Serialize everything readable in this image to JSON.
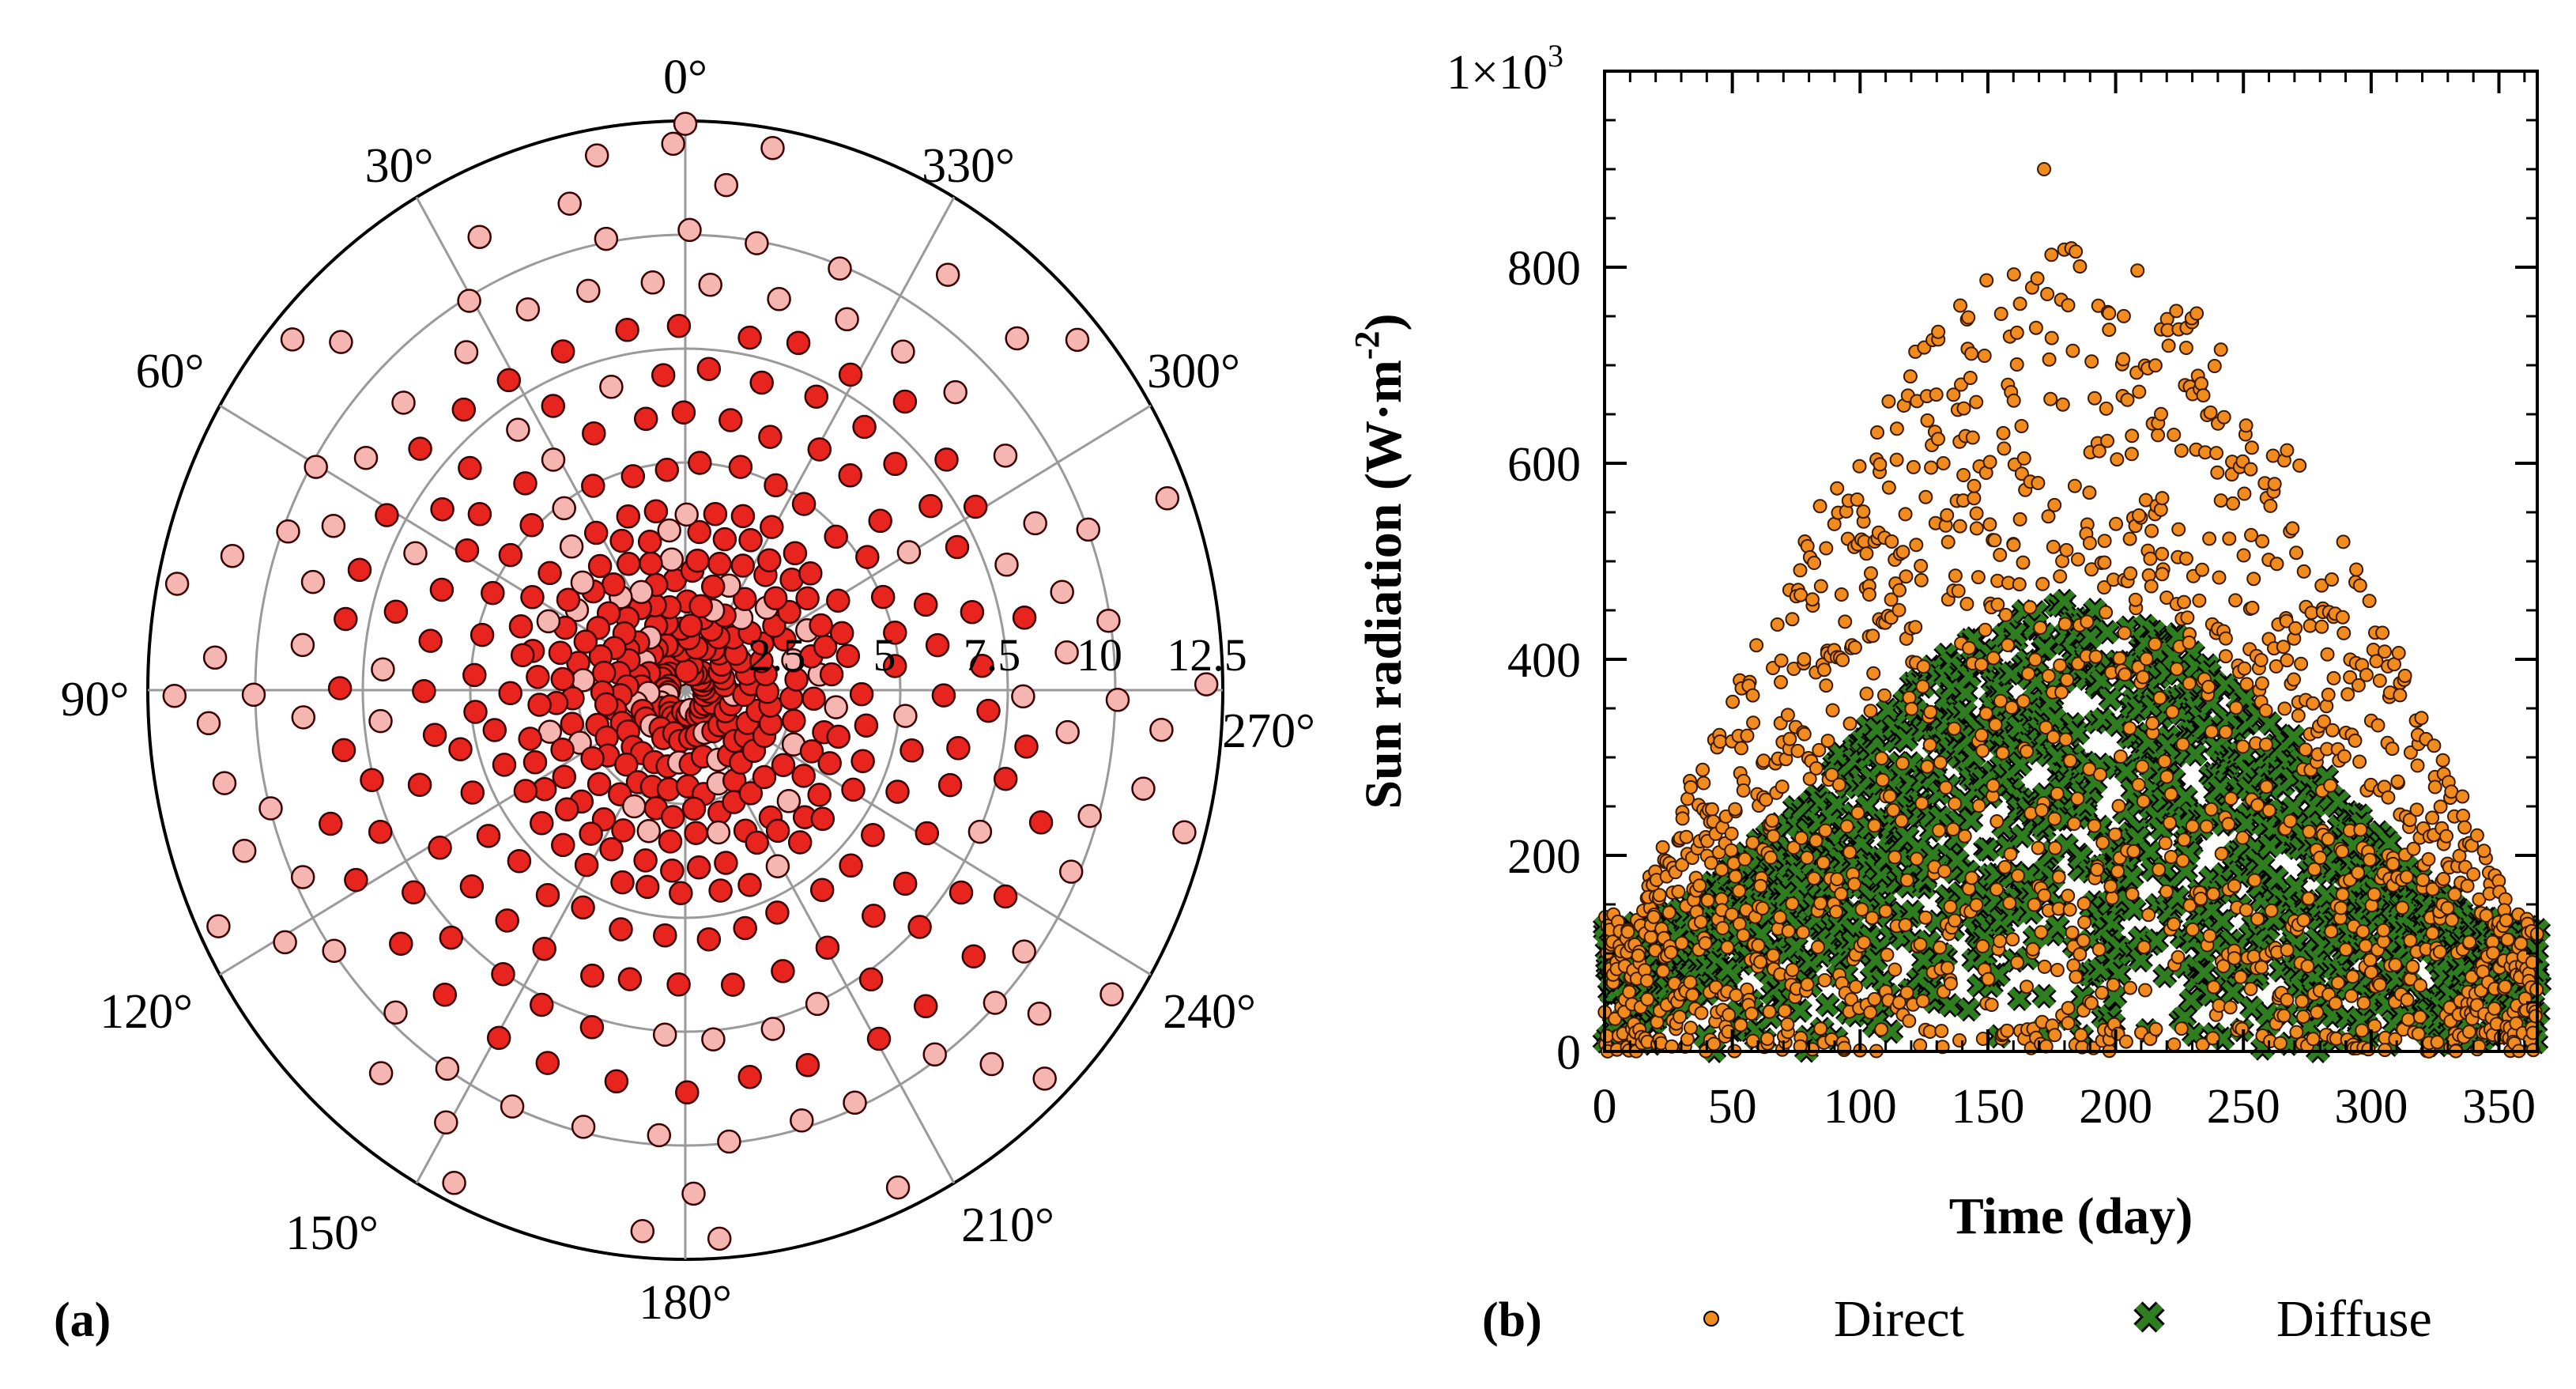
{
  "figure": {
    "panel_a_label": "(a)",
    "panel_b_label": "(b)"
  },
  "chart_data": [
    {
      "type": "scatter",
      "subtype": "polar",
      "title": "",
      "angle_labels": [
        "0°",
        "30°",
        "60°",
        "90°",
        "120°",
        "150°",
        "180°",
        "210°",
        "240°",
        "270°",
        "300°",
        "330°"
      ],
      "radial_ticks": [
        "2.5",
        "5",
        "7.5",
        "10",
        "12.5"
      ],
      "radial_values": [
        2.5,
        5,
        7.5,
        10,
        12.5
      ],
      "rlim": [
        0,
        12.5
      ],
      "grid": true,
      "marker_color": "#e8241f",
      "marker_color_light": "#f5b5b0",
      "rings_r": [
        0.5,
        1.0,
        1.5,
        2.0,
        2.5,
        3.0,
        3.5,
        4.0,
        5.0,
        6.0,
        7.0,
        8.0,
        9.0,
        10.0,
        11.0,
        12.0
      ],
      "azimuth_step_deg": 10
    },
    {
      "type": "scatter",
      "title": "",
      "xlabel": "Time (day)",
      "ylabel_main": "Sun radiation (W·m",
      "ylabel_sup": "-2",
      "ylabel_end": ")",
      "xlim": [
        0,
        365
      ],
      "ylim": [
        0,
        1000
      ],
      "xticks": [
        0,
        50,
        100,
        150,
        200,
        250,
        300,
        350
      ],
      "xtick_labels": [
        "0",
        "50",
        "100",
        "150",
        "200",
        "250",
        "300",
        "350"
      ],
      "yticks": [
        0,
        200,
        400,
        600,
        800
      ],
      "ytick_labels": [
        "0",
        "200",
        "400",
        "600",
        "800"
      ],
      "y_multiplier_base": "1×10",
      "y_multiplier_exp": "3",
      "series": [
        {
          "name": "Direct",
          "marker": "circle",
          "color": "#f28b1e",
          "peak_value": 900,
          "peak_day": 172
        },
        {
          "name": "Diffuse",
          "marker": "x",
          "color": "#2e7d1f",
          "peak_value": 460,
          "peak_day": 172
        }
      ],
      "legend": [
        {
          "label": "Direct",
          "marker": "circle",
          "color": "#f28b1e"
        },
        {
          "label": "Diffuse",
          "marker": "x",
          "color": "#2e7d1f"
        }
      ],
      "legend_position": "bottom"
    }
  ]
}
